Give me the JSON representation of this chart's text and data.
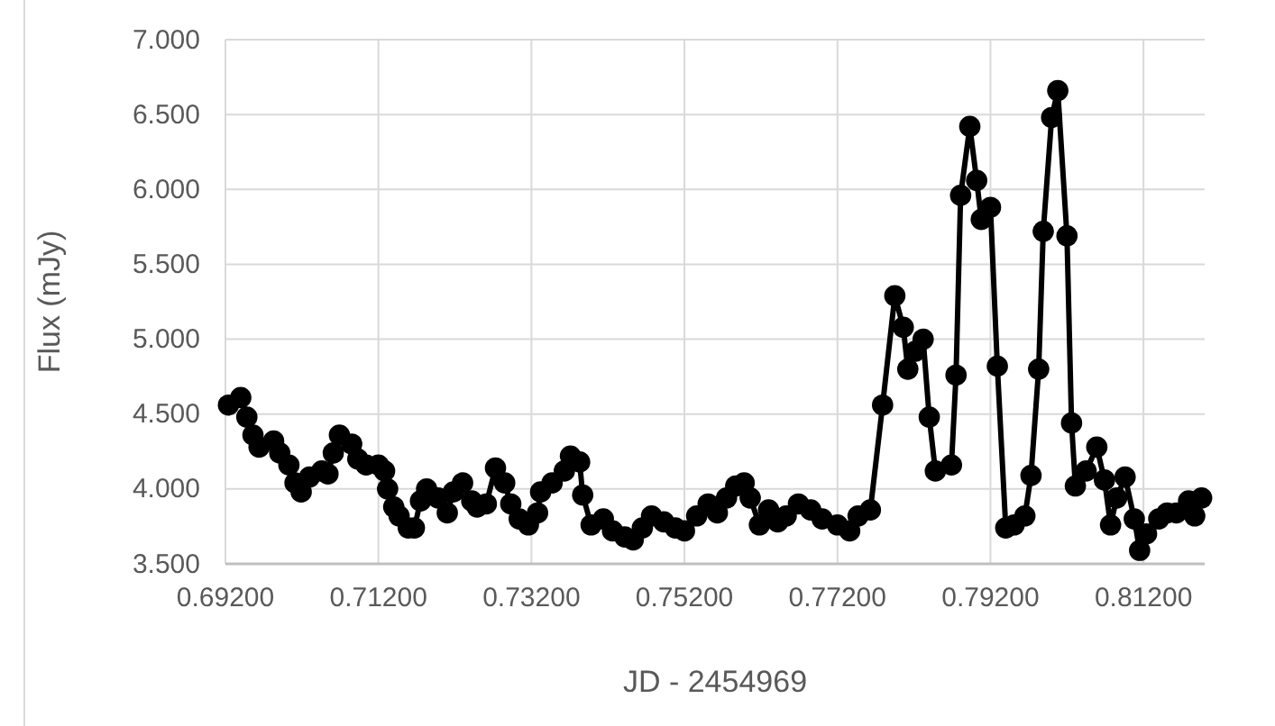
{
  "chart_data": {
    "type": "line",
    "xlabel": "JD - 2454969",
    "ylabel": "Flux (mJy)",
    "xlim": [
      0.692,
      0.82
    ],
    "xticks": [
      {
        "value": 0.692,
        "label": "0.69200"
      },
      {
        "value": 0.712,
        "label": "0.71200"
      },
      {
        "value": 0.732,
        "label": "0.73200"
      },
      {
        "value": 0.752,
        "label": "0.75200"
      },
      {
        "value": 0.772,
        "label": "0.77200"
      },
      {
        "value": 0.792,
        "label": "0.79200"
      },
      {
        "value": 0.812,
        "label": "0.81200"
      }
    ],
    "ylim": [
      3.5,
      7
    ],
    "yticks": [
      {
        "value": 3.5,
        "label": "3.500"
      },
      {
        "value": 4,
        "label": "4.000"
      },
      {
        "value": 4.5,
        "label": "4.500"
      },
      {
        "value": 5,
        "label": "5.000"
      },
      {
        "value": 5.5,
        "label": "5.500"
      },
      {
        "value": 6,
        "label": "6.000"
      },
      {
        "value": 6.5,
        "label": "6.500"
      },
      {
        "value": 7,
        "label": "7.000"
      }
    ],
    "grid": true,
    "marker": "circle",
    "line_style": "solid",
    "x": [
      0.6924,
      0.694,
      0.6948,
      0.6956,
      0.6964,
      0.6983,
      0.6991,
      0.7003,
      0.7011,
      0.7019,
      0.703,
      0.7046,
      0.7054,
      0.7061,
      0.7069,
      0.7085,
      0.7093,
      0.7104,
      0.712,
      0.7128,
      0.7132,
      0.714,
      0.7147,
      0.7159,
      0.7167,
      0.7175,
      0.7183,
      0.7198,
      0.721,
      0.7218,
      0.723,
      0.7242,
      0.7249,
      0.7261,
      0.7273,
      0.7285,
      0.7293,
      0.7304,
      0.7316,
      0.7328,
      0.7332,
      0.7347,
      0.7363,
      0.7371,
      0.7383,
      0.7387,
      0.7398,
      0.7414,
      0.7426,
      0.7442,
      0.7453,
      0.7465,
      0.7477,
      0.7493,
      0.7508,
      0.752,
      0.7536,
      0.7551,
      0.7563,
      0.7575,
      0.7587,
      0.7598,
      0.7606,
      0.7618,
      0.763,
      0.7642,
      0.7653,
      0.7669,
      0.7685,
      0.77,
      0.772,
      0.7736,
      0.7747,
      0.7763,
      0.7779,
      0.7795,
      0.7806,
      0.7812,
      0.7822,
      0.7832,
      0.784,
      0.7848,
      0.7869,
      0.7875,
      0.7881,
      0.7893,
      0.7902,
      0.7908,
      0.792,
      0.7929,
      0.794,
      0.7951,
      0.7965,
      0.7973,
      0.7983,
      0.7989,
      0.8,
      0.8008,
      0.802,
      0.8026,
      0.8031,
      0.8045,
      0.8059,
      0.8069,
      0.8077,
      0.8085,
      0.8096,
      0.8108,
      0.8115,
      0.8124,
      0.814,
      0.8151,
      0.8163,
      0.8179,
      0.8187,
      0.8196
    ],
    "series": [
      {
        "color": "#000000",
        "values": [
          4.56,
          4.61,
          4.48,
          4.36,
          4.28,
          4.32,
          4.24,
          4.16,
          4.04,
          3.98,
          4.08,
          4.12,
          4.1,
          4.24,
          4.36,
          4.3,
          4.2,
          4.16,
          4.16,
          4.12,
          4.0,
          3.88,
          3.82,
          3.74,
          3.74,
          3.92,
          4.0,
          3.94,
          3.84,
          3.98,
          4.04,
          3.92,
          3.88,
          3.9,
          4.14,
          4.04,
          3.9,
          3.8,
          3.76,
          3.84,
          3.98,
          4.04,
          4.12,
          4.22,
          4.18,
          3.96,
          3.76,
          3.8,
          3.72,
          3.68,
          3.66,
          3.74,
          3.82,
          3.78,
          3.74,
          3.72,
          3.82,
          3.9,
          3.84,
          3.94,
          4.02,
          4.04,
          3.94,
          3.76,
          3.86,
          3.78,
          3.82,
          3.9,
          3.86,
          3.8,
          3.76,
          3.72,
          3.82,
          3.86,
          4.56,
          5.29,
          5.08,
          4.8,
          4.92,
          5.0,
          4.48,
          4.12,
          4.16,
          4.76,
          5.96,
          6.42,
          6.06,
          5.8,
          5.88,
          4.82,
          3.74,
          3.76,
          3.82,
          4.09,
          4.8,
          5.72,
          6.48,
          6.66,
          5.69,
          4.44,
          4.02,
          4.12,
          4.28,
          4.06,
          3.76,
          3.94,
          4.08,
          3.8,
          3.59,
          3.7,
          3.8,
          3.84,
          3.84,
          3.92,
          3.82,
          3.94
        ]
      }
    ]
  }
}
